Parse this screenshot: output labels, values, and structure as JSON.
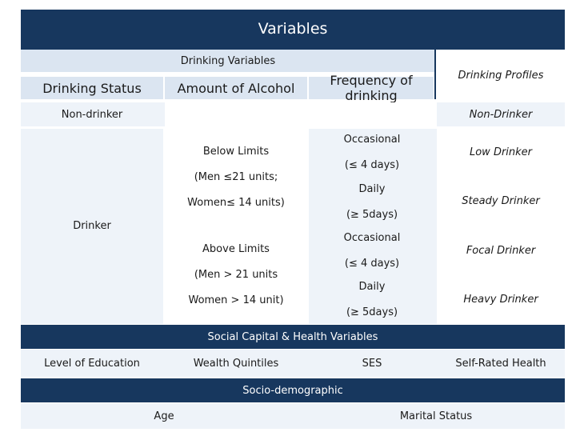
{
  "title": "Variables",
  "drinking": {
    "header": "Drinking Variables",
    "profiles_header": "Drinking Profiles",
    "columns": [
      "Drinking Status",
      "Amount of Alcohol",
      "Frequency of drinking"
    ],
    "non_drinker": "Non-drinker",
    "drinker": "Drinker",
    "below_limits": {
      "label": "Below Limits",
      "men": "(Men ≤21 units;",
      "women": "Women≤ 14 units)"
    },
    "above_limits": {
      "label": "Above Limits",
      "men": "(Men > 21 units",
      "women": "Women > 14 unit)"
    },
    "freq": {
      "occasional": "Occasional",
      "occasional_days": "(≤ 4 days)",
      "daily": "Daily",
      "daily_days": "(≥ 5days)"
    },
    "profiles": [
      "Non-Drinker",
      "Low Drinker",
      "Steady Drinker",
      "Focal Drinker",
      "Heavy Drinker"
    ]
  },
  "social": {
    "header": "Social Capital & Health Variables",
    "items": [
      "Level of Education",
      "Wealth Quintiles",
      "SES",
      "Self-Rated Health"
    ]
  },
  "socio": {
    "header": "Socio-demographic",
    "items": [
      "Age",
      "Marital Status"
    ]
  },
  "colors": {
    "navy": "#17375e",
    "light_blue": "#dbe5f1",
    "pale_blue": "#eef3f9"
  }
}
